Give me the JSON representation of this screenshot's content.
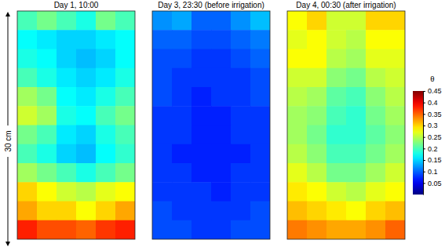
{
  "chart_data": {
    "type": "heatmap",
    "tick_labels": false,
    "annotation": "30 cm",
    "panels": [
      {
        "title": "Day 1, 10:00",
        "cells": [
          [
            0.2,
            0.22,
            0.2,
            0.18,
            0.22,
            0.2
          ],
          [
            0.17,
            0.16,
            0.15,
            0.15,
            0.16,
            0.17
          ],
          [
            0.18,
            0.17,
            0.15,
            0.14,
            0.15,
            0.17
          ],
          [
            0.2,
            0.18,
            0.16,
            0.15,
            0.16,
            0.18
          ],
          [
            0.24,
            0.22,
            0.17,
            0.16,
            0.18,
            0.2
          ],
          [
            0.26,
            0.24,
            0.18,
            0.17,
            0.2,
            0.22
          ],
          [
            0.22,
            0.2,
            0.16,
            0.15,
            0.18,
            0.2
          ],
          [
            0.2,
            0.18,
            0.15,
            0.14,
            0.17,
            0.19
          ],
          [
            0.24,
            0.22,
            0.2,
            0.18,
            0.2,
            0.22
          ],
          [
            0.3,
            0.28,
            0.26,
            0.25,
            0.27,
            0.28
          ],
          [
            0.32,
            0.3,
            0.3,
            0.28,
            0.3,
            0.32
          ],
          [
            0.38,
            0.36,
            0.36,
            0.35,
            0.37,
            0.38
          ]
        ]
      },
      {
        "title": "Day 3, 23:30 (before irrigation)",
        "cells": [
          [
            0.12,
            0.13,
            0.1,
            0.1,
            0.12,
            0.14
          ],
          [
            0.1,
            0.1,
            0.09,
            0.09,
            0.1,
            0.11
          ],
          [
            0.09,
            0.09,
            0.08,
            0.08,
            0.09,
            0.1
          ],
          [
            0.09,
            0.08,
            0.08,
            0.08,
            0.08,
            0.09
          ],
          [
            0.09,
            0.08,
            0.07,
            0.08,
            0.08,
            0.09
          ],
          [
            0.08,
            0.08,
            0.07,
            0.07,
            0.08,
            0.08
          ],
          [
            0.08,
            0.08,
            0.07,
            0.07,
            0.08,
            0.08
          ],
          [
            0.08,
            0.07,
            0.07,
            0.07,
            0.07,
            0.08
          ],
          [
            0.08,
            0.08,
            0.07,
            0.07,
            0.08,
            0.08
          ],
          [
            0.08,
            0.08,
            0.08,
            0.07,
            0.08,
            0.08
          ],
          [
            0.09,
            0.08,
            0.08,
            0.08,
            0.08,
            0.09
          ],
          [
            0.09,
            0.09,
            0.08,
            0.08,
            0.09,
            0.09
          ]
        ]
      },
      {
        "title": "Day 4, 00:30 (after irrigation)",
        "cells": [
          [
            0.28,
            0.3,
            0.26,
            0.26,
            0.3,
            0.3
          ],
          [
            0.27,
            0.28,
            0.26,
            0.25,
            0.28,
            0.28
          ],
          [
            0.28,
            0.28,
            0.25,
            0.24,
            0.27,
            0.27
          ],
          [
            0.26,
            0.26,
            0.23,
            0.22,
            0.25,
            0.26
          ],
          [
            0.25,
            0.24,
            0.21,
            0.2,
            0.23,
            0.25
          ],
          [
            0.24,
            0.23,
            0.2,
            0.19,
            0.22,
            0.24
          ],
          [
            0.24,
            0.22,
            0.19,
            0.19,
            0.21,
            0.23
          ],
          [
            0.25,
            0.23,
            0.2,
            0.2,
            0.22,
            0.24
          ],
          [
            0.27,
            0.25,
            0.22,
            0.22,
            0.24,
            0.26
          ],
          [
            0.29,
            0.28,
            0.26,
            0.25,
            0.27,
            0.28
          ],
          [
            0.31,
            0.3,
            0.29,
            0.28,
            0.3,
            0.31
          ],
          [
            0.34,
            0.33,
            0.32,
            0.32,
            0.33,
            0.35
          ]
        ]
      }
    ],
    "colorbar": {
      "title": "θ",
      "range": [
        0,
        0.45
      ],
      "ticks": [
        0.05,
        0.1,
        0.15,
        0.2,
        0.25,
        0.3,
        0.35,
        0.4,
        0.45
      ]
    }
  }
}
